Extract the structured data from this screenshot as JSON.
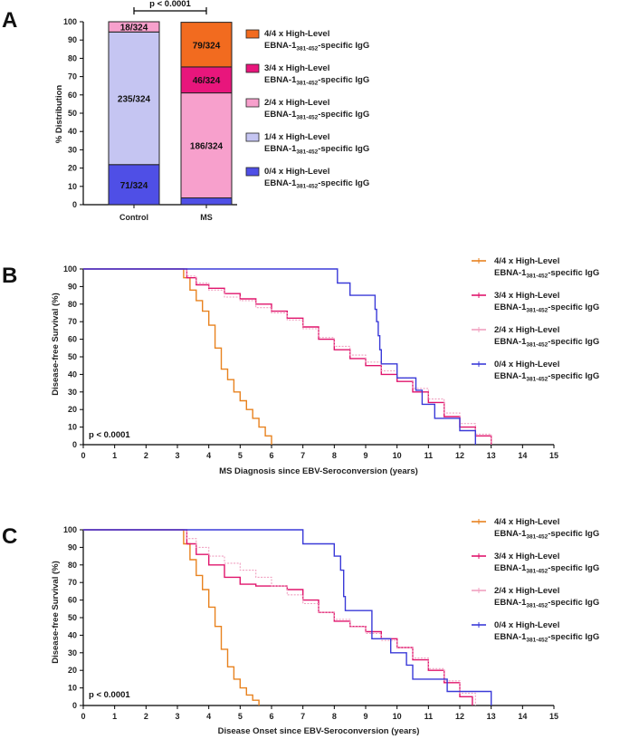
{
  "chart_data": [
    {
      "panel": "A",
      "type": "bar",
      "stacked": true,
      "ylabel": "% Distribution",
      "ylim": [
        0,
        100
      ],
      "yticks": [
        0,
        10,
        20,
        30,
        40,
        50,
        60,
        70,
        80,
        90,
        100
      ],
      "categories": [
        "Control",
        "MS"
      ],
      "significance": "p < 0.0001",
      "series": [
        {
          "name": "0/4",
          "color": "#4f4fe6",
          "values": [
            21.9,
            3.7
          ],
          "labels": [
            "71/324",
            ""
          ]
        },
        {
          "name": "1/4",
          "color": "#c5c5f2",
          "values": [
            72.5,
            0
          ],
          "labels": [
            "235/324",
            ""
          ]
        },
        {
          "name": "2/4",
          "color": "#f7a0cc",
          "values": [
            5.6,
            57.4
          ],
          "labels": [
            "18/324",
            "186/324"
          ]
        },
        {
          "name": "3/4",
          "color": "#e8167c",
          "values": [
            0,
            14.2
          ],
          "labels": [
            "",
            "46/324"
          ]
        },
        {
          "name": "4/4",
          "color": "#f26b1f",
          "values": [
            0,
            24.4
          ],
          "labels": [
            "",
            "79/324"
          ]
        }
      ],
      "legend": [
        {
          "main": "4/4 x High-Level",
          "pre": "EBNA-1",
          "sub": "381-452",
          "post": "-specific IgG",
          "color": "#f26b1f"
        },
        {
          "main": "3/4 x High-Level",
          "pre": "EBNA-1",
          "sub": "381-452",
          "post": "-specific IgG",
          "color": "#e8167c"
        },
        {
          "main": "2/4 x High-Level",
          "pre": "EBNA-1",
          "sub": "381-452",
          "post": "-specific IgG",
          "color": "#f7a0cc"
        },
        {
          "main": "1/4 x High-Level",
          "pre": "EBNA-1",
          "sub": "381-452",
          "post": "-specific IgG",
          "color": "#c5c5f2"
        },
        {
          "main": "0/4 x High-Level",
          "pre": "EBNA-1",
          "sub": "381-452",
          "post": "-specific IgG",
          "color": "#4f4fe6"
        }
      ]
    },
    {
      "panel": "B",
      "type": "line",
      "step": true,
      "xlabel": "MS Diagnosis since EBV-Seroconversion (years)",
      "ylabel": "Disease-free Survival (%)",
      "xlim": [
        0,
        15
      ],
      "ylim": [
        0,
        100
      ],
      "xticks": [
        0,
        1,
        2,
        3,
        4,
        5,
        6,
        7,
        8,
        9,
        10,
        11,
        12,
        13,
        14,
        15
      ],
      "yticks": [
        0,
        10,
        20,
        30,
        40,
        50,
        60,
        70,
        80,
        90,
        100
      ],
      "pvalue": "p < 0.0001",
      "series": [
        {
          "name": "4/4",
          "color": "#e8821f",
          "style": "solid",
          "x": [
            0,
            3.0,
            3.2,
            3.4,
            3.6,
            3.8,
            4.0,
            4.2,
            4.4,
            4.6,
            4.8,
            5.0,
            5.2,
            5.4,
            5.6,
            5.8,
            6.0
          ],
          "y": [
            100,
            100,
            95,
            88,
            82,
            76,
            68,
            55,
            43,
            37,
            30,
            25,
            20,
            15,
            10,
            5,
            0
          ]
        },
        {
          "name": "3/4",
          "color": "#e0156c",
          "style": "solid",
          "x": [
            0,
            3.0,
            3.3,
            3.6,
            4.0,
            4.5,
            5.0,
            5.5,
            6.0,
            6.5,
            7.0,
            7.5,
            8.0,
            8.5,
            9.0,
            9.5,
            10.0,
            10.5,
            11.0,
            11.5,
            12.0,
            12.5,
            13.0
          ],
          "y": [
            100,
            100,
            95,
            91,
            89,
            86,
            83,
            80,
            76,
            72,
            67,
            60,
            54,
            49,
            45,
            40,
            36,
            30,
            24,
            16,
            10,
            5,
            0
          ]
        },
        {
          "name": "2/4",
          "color": "#f0a0c0",
          "style": "dashed",
          "x": [
            0,
            3.0,
            3.3,
            3.6,
            4.0,
            4.5,
            5.0,
            5.5,
            6.0,
            6.5,
            7.0,
            7.5,
            8.0,
            8.5,
            9.0,
            9.5,
            10.0,
            10.5,
            11.0,
            11.5,
            12.0,
            12.5,
            13.0
          ],
          "y": [
            100,
            100,
            96,
            92,
            88,
            84,
            82,
            78,
            75,
            71,
            66,
            61,
            56,
            51,
            47,
            42,
            38,
            32,
            26,
            18,
            12,
            6,
            0
          ]
        },
        {
          "name": "0/4",
          "color": "#3a3ad8",
          "style": "solid",
          "x": [
            0,
            8.0,
            8.1,
            8.5,
            9.0,
            9.3,
            9.35,
            9.4,
            9.45,
            9.5,
            9.6,
            10.0,
            10.6,
            10.8,
            11.2,
            11.5,
            12.0,
            12.4,
            12.5
          ],
          "y": [
            100,
            100,
            92,
            85,
            85,
            77,
            70,
            62,
            54,
            46,
            46,
            38,
            31,
            23,
            15,
            15,
            8,
            8,
            0
          ]
        }
      ],
      "legend": [
        {
          "main": "4/4 x High-Level",
          "pre": "EBNA-1",
          "sub": "381-452",
          "post": "-specific IgG",
          "color": "#e8821f"
        },
        {
          "main": "3/4 x High-Level",
          "pre": "EBNA-1",
          "sub": "381-452",
          "post": "-specific IgG",
          "color": "#e0156c"
        },
        {
          "main": "2/4 x High-Level",
          "pre": "EBNA-1",
          "sub": "381-452",
          "post": "-specific IgG",
          "color": "#f0a0c0"
        },
        {
          "main": "0/4 x High-Level",
          "pre": "EBNA-1",
          "sub": "381-452",
          "post": "-specific IgG",
          "color": "#3a3ad8"
        }
      ]
    },
    {
      "panel": "C",
      "type": "line",
      "step": true,
      "xlabel": "Disease Onset since EBV-Seroconversion (years)",
      "ylabel": "Disease-free Survival (%)",
      "xlim": [
        0,
        15
      ],
      "ylim": [
        0,
        100
      ],
      "xticks": [
        0,
        1,
        2,
        3,
        4,
        5,
        6,
        7,
        8,
        9,
        10,
        11,
        12,
        13,
        14,
        15
      ],
      "yticks": [
        0,
        10,
        20,
        30,
        40,
        50,
        60,
        70,
        80,
        90,
        100
      ],
      "pvalue": "p < 0.0001",
      "series": [
        {
          "name": "4/4",
          "color": "#e8821f",
          "style": "solid",
          "x": [
            0,
            3.0,
            3.2,
            3.4,
            3.6,
            3.8,
            4.0,
            4.2,
            4.4,
            4.6,
            4.8,
            5.0,
            5.2,
            5.4,
            5.6
          ],
          "y": [
            100,
            100,
            92,
            83,
            74,
            66,
            56,
            45,
            32,
            22,
            15,
            10,
            6,
            3,
            0
          ]
        },
        {
          "name": "3/4",
          "color": "#e0156c",
          "style": "solid",
          "x": [
            0,
            3.0,
            3.3,
            3.6,
            4.0,
            4.5,
            5.0,
            5.5,
            6.0,
            6.5,
            7.0,
            7.5,
            8.0,
            8.5,
            9.0,
            9.5,
            10.0,
            10.5,
            11.0,
            11.5,
            12.0,
            12.4
          ],
          "y": [
            100,
            100,
            92,
            86,
            80,
            73,
            69,
            68,
            68,
            66,
            60,
            53,
            48,
            45,
            42,
            38,
            33,
            26,
            20,
            13,
            5,
            0
          ]
        },
        {
          "name": "2/4",
          "color": "#f0a0c0",
          "style": "dashed",
          "x": [
            0,
            3.0,
            3.3,
            3.6,
            4.0,
            4.5,
            5.0,
            5.5,
            6.0,
            6.5,
            7.0,
            7.5,
            8.0,
            8.5,
            9.0,
            9.5,
            10.0,
            10.5,
            11.0,
            11.5,
            12.0,
            12.5
          ],
          "y": [
            100,
            100,
            95,
            90,
            85,
            81,
            77,
            73,
            68,
            63,
            58,
            53,
            49,
            45,
            41,
            37,
            33,
            27,
            21,
            14,
            7,
            0
          ]
        },
        {
          "name": "0/4",
          "color": "#3a3ad8",
          "style": "solid",
          "x": [
            0,
            6.8,
            7.0,
            7.6,
            8.0,
            8.2,
            8.3,
            8.35,
            9.0,
            9.2,
            9.8,
            10.3,
            10.5,
            11.0,
            11.6,
            12.0,
            12.5,
            13.0
          ],
          "y": [
            100,
            100,
            92,
            92,
            85,
            77,
            62,
            54,
            54,
            38,
            30,
            23,
            15,
            15,
            8,
            8,
            8,
            0
          ]
        }
      ],
      "legend": [
        {
          "main": "4/4 x High-Level",
          "pre": "EBNA-1",
          "sub": "381-452",
          "post": "-specific IgG",
          "color": "#e8821f"
        },
        {
          "main": "3/4 x High-Level",
          "pre": "EBNA-1",
          "sub": "381-452",
          "post": "-specific IgG",
          "color": "#e0156c"
        },
        {
          "main": "2/4 x High-Level",
          "pre": "EBNA-1",
          "sub": "381-452",
          "post": "-specific IgG",
          "color": "#f0a0c0"
        },
        {
          "main": "0/4 x High-Level",
          "pre": "EBNA-1",
          "sub": "381-452",
          "post": "-specific IgG",
          "color": "#3a3ad8"
        }
      ]
    }
  ]
}
